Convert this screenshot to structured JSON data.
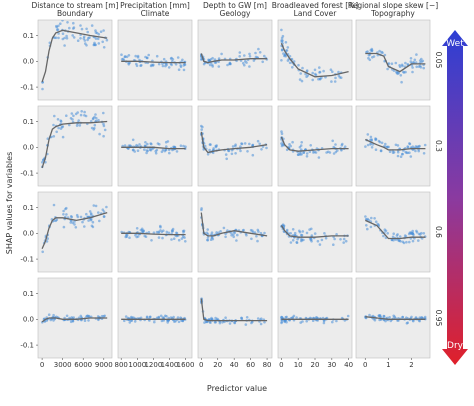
{
  "chart_data": {
    "type": "scatter",
    "ylabel": "SHAP values for variables",
    "xlabel": "Predictor value",
    "ylim": [
      -0.15,
      0.16
    ],
    "yticks": [
      "0.1",
      "0.0",
      "-0.1"
    ],
    "grid": false,
    "columns": [
      {
        "title_line1": "Distance to stream [m]",
        "title_line2": "Boundary",
        "xlim": [
          -600,
          10200
        ],
        "xticks": [
          0,
          3000,
          6000,
          9000
        ],
        "xtick_labels": [
          "0",
          "3000",
          "6000",
          "9000"
        ]
      },
      {
        "title_line1": "Precipitation [mm]",
        "title_line2": "Climate",
        "xlim": [
          760,
          1680
        ],
        "xticks": [
          800,
          1000,
          1200,
          1400,
          1600
        ],
        "xtick_labels": [
          "800",
          "1000",
          "1200",
          "1400",
          "1600"
        ]
      },
      {
        "title_line1": "Depth to GW [m]",
        "title_line2": "Geology",
        "xlim": [
          -4,
          86
        ],
        "xticks": [
          0,
          20,
          40,
          60,
          80
        ],
        "xtick_labels": [
          "0",
          "20",
          "40",
          "60",
          "80"
        ]
      },
      {
        "title_line1": "Broadleaved forest [%]",
        "title_line2": "Land Cover",
        "xlim": [
          -2,
          42
        ],
        "xticks": [
          0,
          10,
          20,
          30,
          40
        ],
        "xtick_labels": [
          "0",
          "10",
          "20",
          "30",
          "40"
        ]
      },
      {
        "title_line1": "Regional slope skew [−]",
        "title_line2": "Topography",
        "xlim": [
          -0.4,
          2.8
        ],
        "xticks": [
          0,
          1,
          2
        ],
        "xtick_labels": [
          "0",
          "1",
          "2"
        ]
      }
    ],
    "rows": [
      {
        "label": "0.05",
        "trends": [
          {
            "x": [
              0,
              500,
              1000,
              1500,
              2000,
              3000,
              5000,
              7000,
              9500
            ],
            "y": [
              -0.08,
              -0.04,
              0.04,
              0.09,
              0.11,
              0.12,
              0.11,
              0.1,
              0.09
            ]
          },
          {
            "x": [
              800,
              1000,
              1200,
              1400,
              1600
            ],
            "y": [
              0.0,
              0.0,
              -0.003,
              -0.005,
              -0.005
            ]
          },
          {
            "x": [
              0,
              3,
              8,
              15,
              25,
              40,
              60,
              80
            ],
            "y": [
              0.03,
              0.0,
              -0.005,
              0.0,
              0.005,
              0.005,
              0.01,
              0.01
            ]
          },
          {
            "x": [
              0,
              2,
              5,
              10,
              20,
              30,
              40
            ],
            "y": [
              0.07,
              0.04,
              0.01,
              -0.03,
              -0.06,
              -0.055,
              -0.04
            ]
          },
          {
            "x": [
              0,
              0.5,
              0.8,
              1.0,
              1.5,
              2.0,
              2.6
            ],
            "y": [
              0.03,
              0.03,
              0.02,
              -0.02,
              -0.04,
              -0.01,
              -0.01
            ]
          }
        ]
      },
      {
        "label": "0.3",
        "trends": [
          {
            "x": [
              0,
              500,
              1000,
              1500,
              2000,
              3000,
              5000,
              7000,
              9500
            ],
            "y": [
              -0.08,
              -0.04,
              0.03,
              0.07,
              0.08,
              0.09,
              0.095,
              0.095,
              0.1
            ]
          },
          {
            "x": [
              800,
              1000,
              1200,
              1400,
              1600
            ],
            "y": [
              0.0,
              0.0,
              0.0,
              -0.005,
              -0.005
            ]
          },
          {
            "x": [
              0,
              3,
              8,
              15,
              25,
              40,
              60,
              80
            ],
            "y": [
              0.06,
              0.0,
              -0.02,
              -0.015,
              -0.01,
              -0.005,
              0.0,
              0.01
            ]
          },
          {
            "x": [
              0,
              2,
              5,
              10,
              20,
              30,
              40
            ],
            "y": [
              0.04,
              0.01,
              -0.01,
              -0.015,
              -0.01,
              -0.005,
              -0.005
            ]
          },
          {
            "x": [
              0,
              0.5,
              0.8,
              1.0,
              1.5,
              2.0,
              2.6
            ],
            "y": [
              0.03,
              0.01,
              0.0,
              -0.01,
              -0.01,
              -0.005,
              -0.005
            ]
          }
        ]
      },
      {
        "label": "0.6",
        "trends": [
          {
            "x": [
              0,
              500,
              1000,
              1500,
              2000,
              3000,
              5000,
              7000,
              9500
            ],
            "y": [
              -0.06,
              -0.03,
              0.02,
              0.05,
              0.06,
              0.06,
              0.05,
              0.06,
              0.08
            ]
          },
          {
            "x": [
              800,
              1000,
              1200,
              1400,
              1600
            ],
            "y": [
              0.0,
              0.0,
              -0.003,
              -0.005,
              -0.005
            ]
          },
          {
            "x": [
              0,
              3,
              8,
              15,
              25,
              40,
              60,
              80
            ],
            "y": [
              0.08,
              0.0,
              -0.01,
              -0.01,
              0.0,
              0.01,
              0.0,
              -0.01
            ]
          },
          {
            "x": [
              0,
              2,
              5,
              10,
              20,
              30,
              40
            ],
            "y": [
              0.03,
              0.01,
              -0.01,
              -0.015,
              -0.015,
              -0.01,
              -0.01
            ]
          },
          {
            "x": [
              0,
              0.5,
              0.8,
              1.0,
              1.5,
              2.0,
              2.6
            ],
            "y": [
              0.05,
              0.03,
              0.0,
              -0.02,
              -0.02,
              -0.015,
              -0.015
            ]
          }
        ]
      },
      {
        "label": "0.95",
        "trends": [
          {
            "x": [
              0,
              500,
              1000,
              2000,
              3000,
              5000,
              7000,
              9500
            ],
            "y": [
              -0.01,
              0.0,
              0.005,
              0.005,
              0.0,
              0.0,
              0.005,
              0.005
            ]
          },
          {
            "x": [
              800,
              1000,
              1200,
              1400,
              1600
            ],
            "y": [
              0.0,
              0.0,
              0.0,
              0.0,
              0.0
            ]
          },
          {
            "x": [
              0,
              3,
              8,
              15,
              25,
              40,
              60,
              80
            ],
            "y": [
              0.08,
              0.0,
              -0.005,
              -0.005,
              -0.005,
              -0.005,
              -0.005,
              -0.005
            ]
          },
          {
            "x": [
              0,
              2,
              5,
              10,
              20,
              30,
              40
            ],
            "y": [
              0.0,
              0.0,
              0.0,
              0.0,
              0.0,
              0.0,
              0.0
            ]
          },
          {
            "x": [
              0,
              0.5,
              1.0,
              1.5,
              2.0,
              2.6
            ],
            "y": [
              0.01,
              0.005,
              0.0,
              0.0,
              0.0,
              0.0
            ]
          }
        ]
      }
    ],
    "colorbar": {
      "top_label": "Wet",
      "bottom_label": "Dry",
      "top_color": "#2d3fd4",
      "bottom_color": "#e0202a"
    },
    "colors": {
      "points": "#4a90d9",
      "trend": "#666666",
      "panel_bg": "#ececec"
    }
  }
}
